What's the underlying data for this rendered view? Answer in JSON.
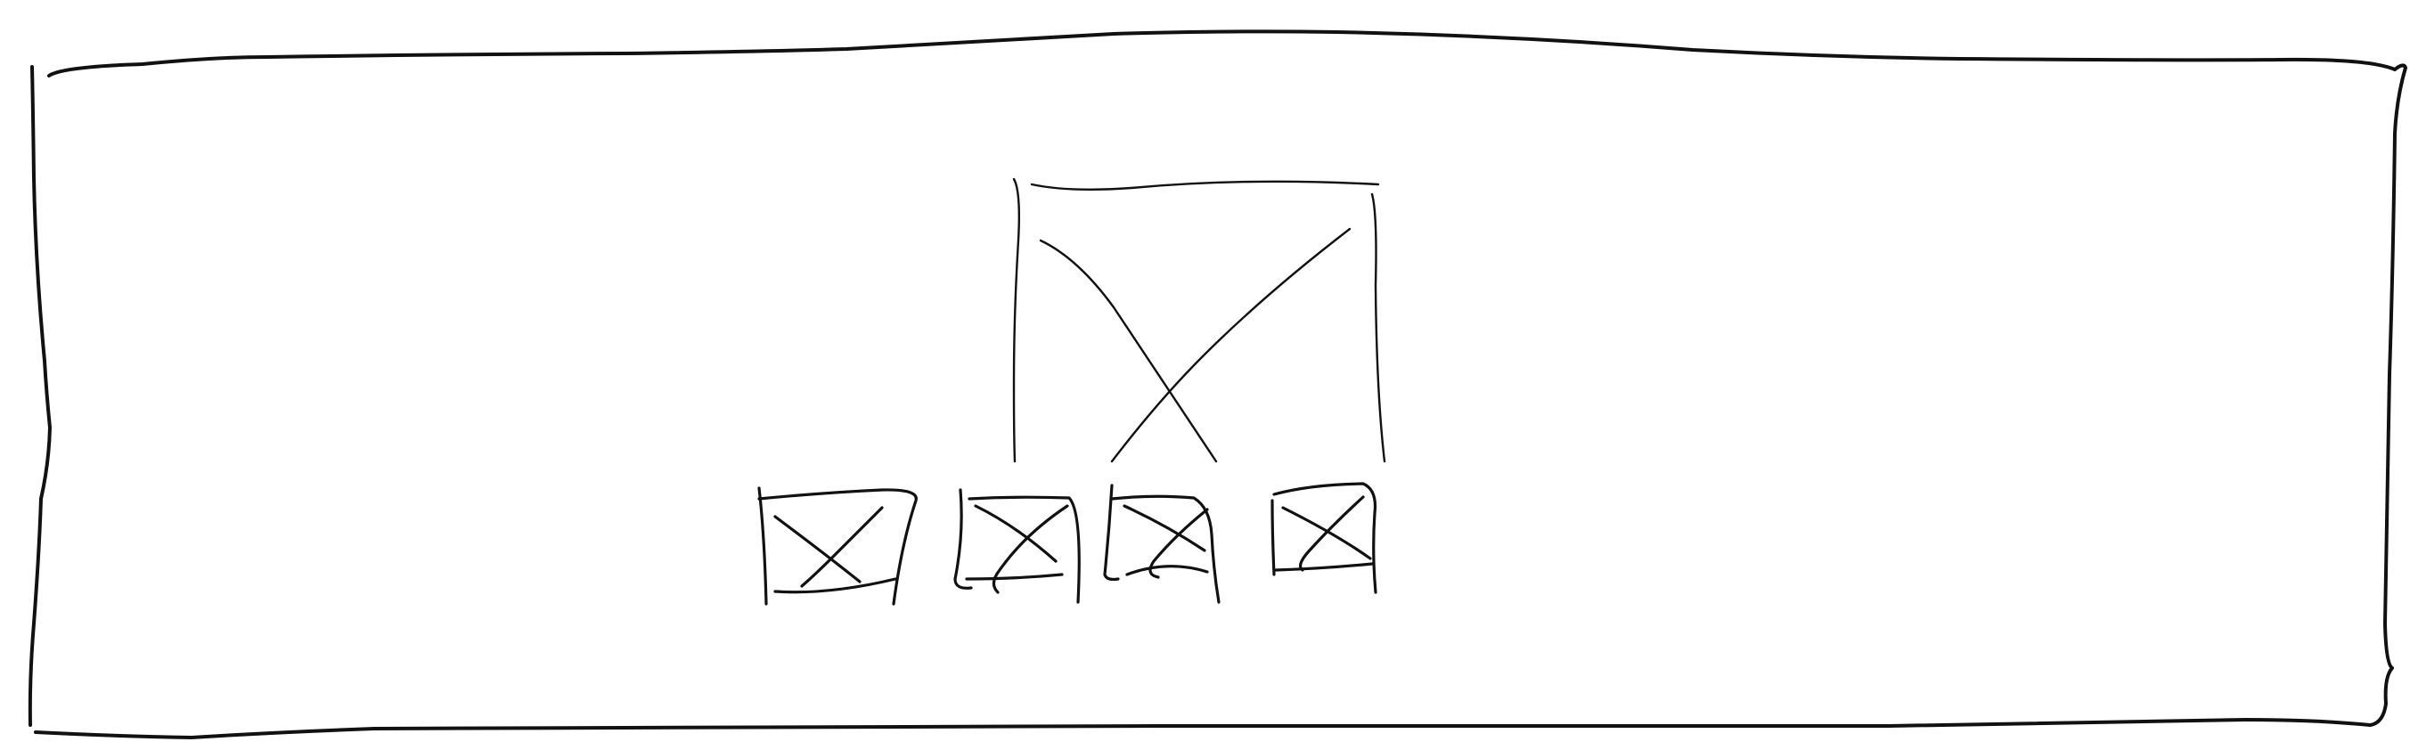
{
  "wireframe": {
    "title": "",
    "main_image": {
      "kind": "image-placeholder"
    },
    "thumbnails": [
      {
        "kind": "image-placeholder"
      },
      {
        "kind": "image-placeholder"
      },
      {
        "kind": "image-placeholder"
      },
      {
        "kind": "image-placeholder"
      }
    ]
  },
  "colors": {
    "ink": "#111111",
    "background": "#ffffff"
  }
}
